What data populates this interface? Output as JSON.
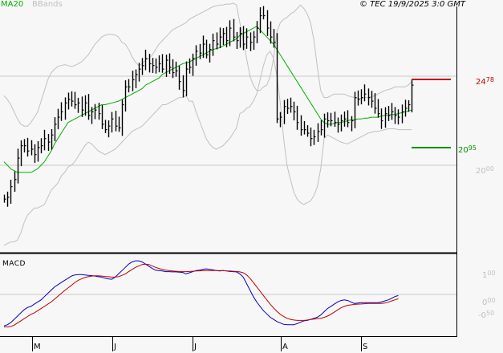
{
  "legend": {
    "ma": "MA20",
    "ma_color": "#00b000",
    "bbands": "BBands",
    "bbands_color": "#c0c0c0"
  },
  "copyright": "© TEC 19/9/2025 3:0 GMT",
  "macd_title": "MACD",
  "price_axis": {
    "current": {
      "int": "24",
      "dec": "78",
      "value": 2478,
      "color": "#c00000"
    },
    "support": {
      "int": "20",
      "dec": "95",
      "value": 2095,
      "color": "#009000"
    },
    "grid": [
      {
        "int": "20",
        "dec": "00",
        "value": 2000
      },
      {
        "value": 2500
      }
    ]
  },
  "macd_axis": [
    {
      "int": "1",
      "dec": "00",
      "value": 1.0
    },
    {
      "int": "0",
      "dec": "00",
      "value": 0.0
    },
    {
      "int": "-0",
      "dec": "50",
      "value": -0.5
    }
  ],
  "x_axis": [
    {
      "label": "M",
      "x": 40
    },
    {
      "label": "J",
      "x": 140
    },
    {
      "label": "J",
      "x": 240
    },
    {
      "label": "A",
      "x": 350
    },
    {
      "label": "S",
      "x": 450
    }
  ],
  "chart_data": [
    {
      "type": "ohlc",
      "title": "Price with MA20 and Bollinger Bands",
      "ylim": [
        1520,
        2920
      ],
      "gridlines": [
        2000,
        2500
      ],
      "levels": {
        "resistance_current": 2478,
        "support": 2095
      },
      "close": [
        1810,
        1820,
        1880,
        1920,
        2040,
        2110,
        2110,
        2080,
        2090,
        2060,
        2100,
        2110,
        2150,
        2130,
        2170,
        2230,
        2270,
        2300,
        2350,
        2370,
        2360,
        2340,
        2350,
        2310,
        2350,
        2280,
        2300,
        2310,
        2290,
        2230,
        2200,
        2220,
        2260,
        2220,
        2210,
        2340,
        2440,
        2440,
        2480,
        2510,
        2540,
        2560,
        2600,
        2570,
        2560,
        2550,
        2570,
        2540,
        2590,
        2550,
        2520,
        2530,
        2470,
        2420,
        2540,
        2550,
        2600,
        2640,
        2630,
        2680,
        2620,
        2650,
        2700,
        2680,
        2720,
        2740,
        2700,
        2770,
        2720,
        2700,
        2740,
        2680,
        2720,
        2690,
        2720,
        2770,
        2840,
        2840,
        2770,
        2720,
        2690,
        2260,
        2270,
        2330,
        2320,
        2330,
        2300,
        2240,
        2200,
        2200,
        2180,
        2150,
        2160,
        2190,
        2200,
        2260,
        2250,
        2250,
        2240,
        2230,
        2250,
        2260,
        2240,
        2250,
        2380,
        2370,
        2380,
        2400,
        2380,
        2360,
        2320,
        2290,
        2250,
        2290,
        2280,
        2300,
        2280,
        2270,
        2300,
        2320,
        2340,
        2450
      ],
      "ma20": [
        2020,
        2000,
        1980,
        1970,
        1960,
        1960,
        1960,
        1960,
        1960,
        1970,
        1980,
        2000,
        2020,
        2050,
        2080,
        2120,
        2150,
        2180,
        2210,
        2240,
        2250,
        2260,
        2270,
        2280,
        2290,
        2300,
        2310,
        2320,
        2330,
        2340,
        2340,
        2345,
        2350,
        2355,
        2360,
        2370,
        2380,
        2390,
        2400,
        2410,
        2420,
        2430,
        2450,
        2460,
        2470,
        2480,
        2490,
        2510,
        2520,
        2530,
        2540,
        2550,
        2560,
        2570,
        2575,
        2580,
        2590,
        2600,
        2610,
        2620,
        2630,
        2640,
        2650,
        2655,
        2660,
        2670,
        2680,
        2690,
        2700,
        2710,
        2730,
        2740,
        2750,
        2760,
        2770,
        2780,
        2760,
        2740,
        2720,
        2700,
        2680,
        2650,
        2620,
        2590,
        2560,
        2530,
        2500,
        2470,
        2440,
        2410,
        2380,
        2350,
        2320,
        2290,
        2260,
        2240,
        2230,
        2230,
        2235,
        2240,
        2240,
        2245,
        2250,
        2255,
        2255,
        2260,
        2260,
        2265,
        2265,
        2270,
        2270,
        2270,
        2275,
        2280,
        2280,
        2285,
        2285,
        2290,
        2295,
        2300,
        2305,
        2310
      ],
      "bb_upper": [
        2390,
        2370,
        2340,
        2300,
        2260,
        2230,
        2220,
        2220,
        2240,
        2270,
        2300,
        2360,
        2420,
        2480,
        2520,
        2540,
        2555,
        2560,
        2565,
        2560,
        2555,
        2560,
        2570,
        2580,
        2600,
        2620,
        2650,
        2680,
        2700,
        2720,
        2730,
        2735,
        2735,
        2730,
        2720,
        2690,
        2680,
        2650,
        2610,
        2580,
        2560,
        2570,
        2590,
        2600,
        2620,
        2650,
        2680,
        2700,
        2720,
        2740,
        2760,
        2770,
        2780,
        2790,
        2800,
        2820,
        2830,
        2840,
        2850,
        2860,
        2870,
        2880,
        2890,
        2895,
        2900,
        2900,
        2905,
        2905,
        2910,
        2900,
        2800,
        2700,
        2600,
        2500,
        2450,
        2420,
        2420,
        2440,
        2450,
        2500,
        2600,
        2750,
        2800,
        2820,
        2830,
        2850,
        2860,
        2880,
        2900,
        2880,
        2850,
        2800,
        2700,
        2550,
        2420,
        2380,
        2380,
        2390,
        2400,
        2400,
        2400,
        2400,
        2390,
        2385,
        2380,
        2375,
        2375,
        2380,
        2380,
        2385,
        2390,
        2400,
        2410,
        2420,
        2425,
        2430,
        2440,
        2440,
        2440,
        2440,
        2450,
        2470
      ],
      "bb_lower": [
        1550,
        1560,
        1570,
        1570,
        1580,
        1620,
        1680,
        1720,
        1740,
        1760,
        1760,
        1770,
        1780,
        1820,
        1860,
        1880,
        1900,
        1940,
        1960,
        1990,
        2000,
        2020,
        2050,
        2080,
        2110,
        2130,
        2120,
        2100,
        2080,
        2070,
        2060,
        2070,
        2080,
        2090,
        2110,
        2130,
        2150,
        2170,
        2190,
        2200,
        2210,
        2220,
        2240,
        2260,
        2280,
        2300,
        2320,
        2340,
        2340,
        2350,
        2360,
        2370,
        2380,
        2380,
        2390,
        2360,
        2360,
        2300,
        2250,
        2200,
        2150,
        2120,
        2100,
        2090,
        2100,
        2110,
        2130,
        2150,
        2180,
        2210,
        2290,
        2300,
        2320,
        2330,
        2360,
        2400,
        2480,
        2560,
        2620,
        2640,
        2600,
        2500,
        2350,
        2150,
        2000,
        1920,
        1850,
        1810,
        1790,
        1780,
        1790,
        1800,
        1830,
        1880,
        1980,
        2150,
        2170,
        2160,
        2150,
        2140,
        2130,
        2125,
        2120,
        2130,
        2140,
        2150,
        2160,
        2170,
        2180,
        2185,
        2190,
        2190,
        2195,
        2200,
        2205,
        2205,
        2205,
        2200,
        2200,
        2200,
        2200,
        2200
      ],
      "x_start": 5,
      "x_step": 4.2
    },
    {
      "type": "line",
      "title": "MACD",
      "ylim": [
        -1.6,
        1.7
      ],
      "gridlines": [
        0.0
      ],
      "series": [
        {
          "name": "MACD",
          "color": "#0000c0",
          "values": [
            -1.45,
            -1.4,
            -1.3,
            -1.15,
            -1.0,
            -0.85,
            -0.7,
            -0.6,
            -0.55,
            -0.45,
            -0.35,
            -0.25,
            -0.1,
            0.05,
            0.2,
            0.35,
            0.45,
            0.55,
            0.65,
            0.75,
            0.85,
            0.9,
            0.92,
            0.92,
            0.9,
            0.88,
            0.87,
            0.85,
            0.82,
            0.8,
            0.75,
            0.72,
            0.7,
            0.8,
            0.95,
            1.1,
            1.25,
            1.4,
            1.5,
            1.55,
            1.55,
            1.5,
            1.4,
            1.3,
            1.2,
            1.12,
            1.1,
            1.08,
            1.05,
            1.05,
            1.04,
            1.04,
            1.03,
            1.02,
            0.95,
            1.0,
            1.05,
            1.1,
            1.12,
            1.15,
            1.18,
            1.16,
            1.14,
            1.1,
            1.08,
            1.1,
            1.08,
            1.06,
            1.05,
            1.04,
            0.95,
            0.8,
            0.5,
            0.2,
            -0.1,
            -0.35,
            -0.55,
            -0.75,
            -0.9,
            -1.05,
            -1.15,
            -1.25,
            -1.32,
            -1.38,
            -1.4,
            -1.4,
            -1.4,
            -1.35,
            -1.28,
            -1.22,
            -1.2,
            -1.15,
            -1.1,
            -1.05,
            -0.95,
            -0.8,
            -0.65,
            -0.55,
            -0.45,
            -0.35,
            -0.28,
            -0.25,
            -0.28,
            -0.35,
            -0.42,
            -0.4,
            -0.38,
            -0.38,
            -0.38,
            -0.38,
            -0.38,
            -0.38,
            -0.35,
            -0.3,
            -0.25,
            -0.18,
            -0.1,
            -0.05
          ]
        },
        {
          "name": "Signal",
          "color": "#c00000",
          "values": [
            -1.5,
            -1.5,
            -1.48,
            -1.42,
            -1.32,
            -1.22,
            -1.12,
            -1.02,
            -0.92,
            -0.85,
            -0.75,
            -0.65,
            -0.55,
            -0.45,
            -0.35,
            -0.22,
            -0.08,
            0.05,
            0.18,
            0.3,
            0.42,
            0.55,
            0.65,
            0.72,
            0.78,
            0.82,
            0.85,
            0.86,
            0.86,
            0.85,
            0.83,
            0.82,
            0.8,
            0.8,
            0.82,
            0.88,
            0.95,
            1.05,
            1.15,
            1.25,
            1.32,
            1.38,
            1.4,
            1.38,
            1.32,
            1.25,
            1.2,
            1.15,
            1.12,
            1.1,
            1.08,
            1.07,
            1.06,
            1.05,
            1.05,
            1.06,
            1.07,
            1.08,
            1.09,
            1.1,
            1.1,
            1.1,
            1.1,
            1.1,
            1.1,
            1.1,
            1.09,
            1.08,
            1.07,
            1.06,
            1.04,
            1.0,
            0.9,
            0.75,
            0.55,
            0.35,
            0.15,
            -0.05,
            -0.25,
            -0.45,
            -0.62,
            -0.78,
            -0.92,
            -1.02,
            -1.1,
            -1.15,
            -1.18,
            -1.2,
            -1.2,
            -1.2,
            -1.18,
            -1.16,
            -1.14,
            -1.12,
            -1.1,
            -1.06,
            -1.0,
            -0.92,
            -0.82,
            -0.72,
            -0.62,
            -0.55,
            -0.5,
            -0.48,
            -0.46,
            -0.45,
            -0.44,
            -0.43,
            -0.42,
            -0.42,
            -0.42,
            -0.42,
            -0.42,
            -0.4,
            -0.36,
            -0.3,
            -0.25,
            -0.2
          ]
        }
      ],
      "x_start": 5,
      "x_step": 4.2
    }
  ]
}
